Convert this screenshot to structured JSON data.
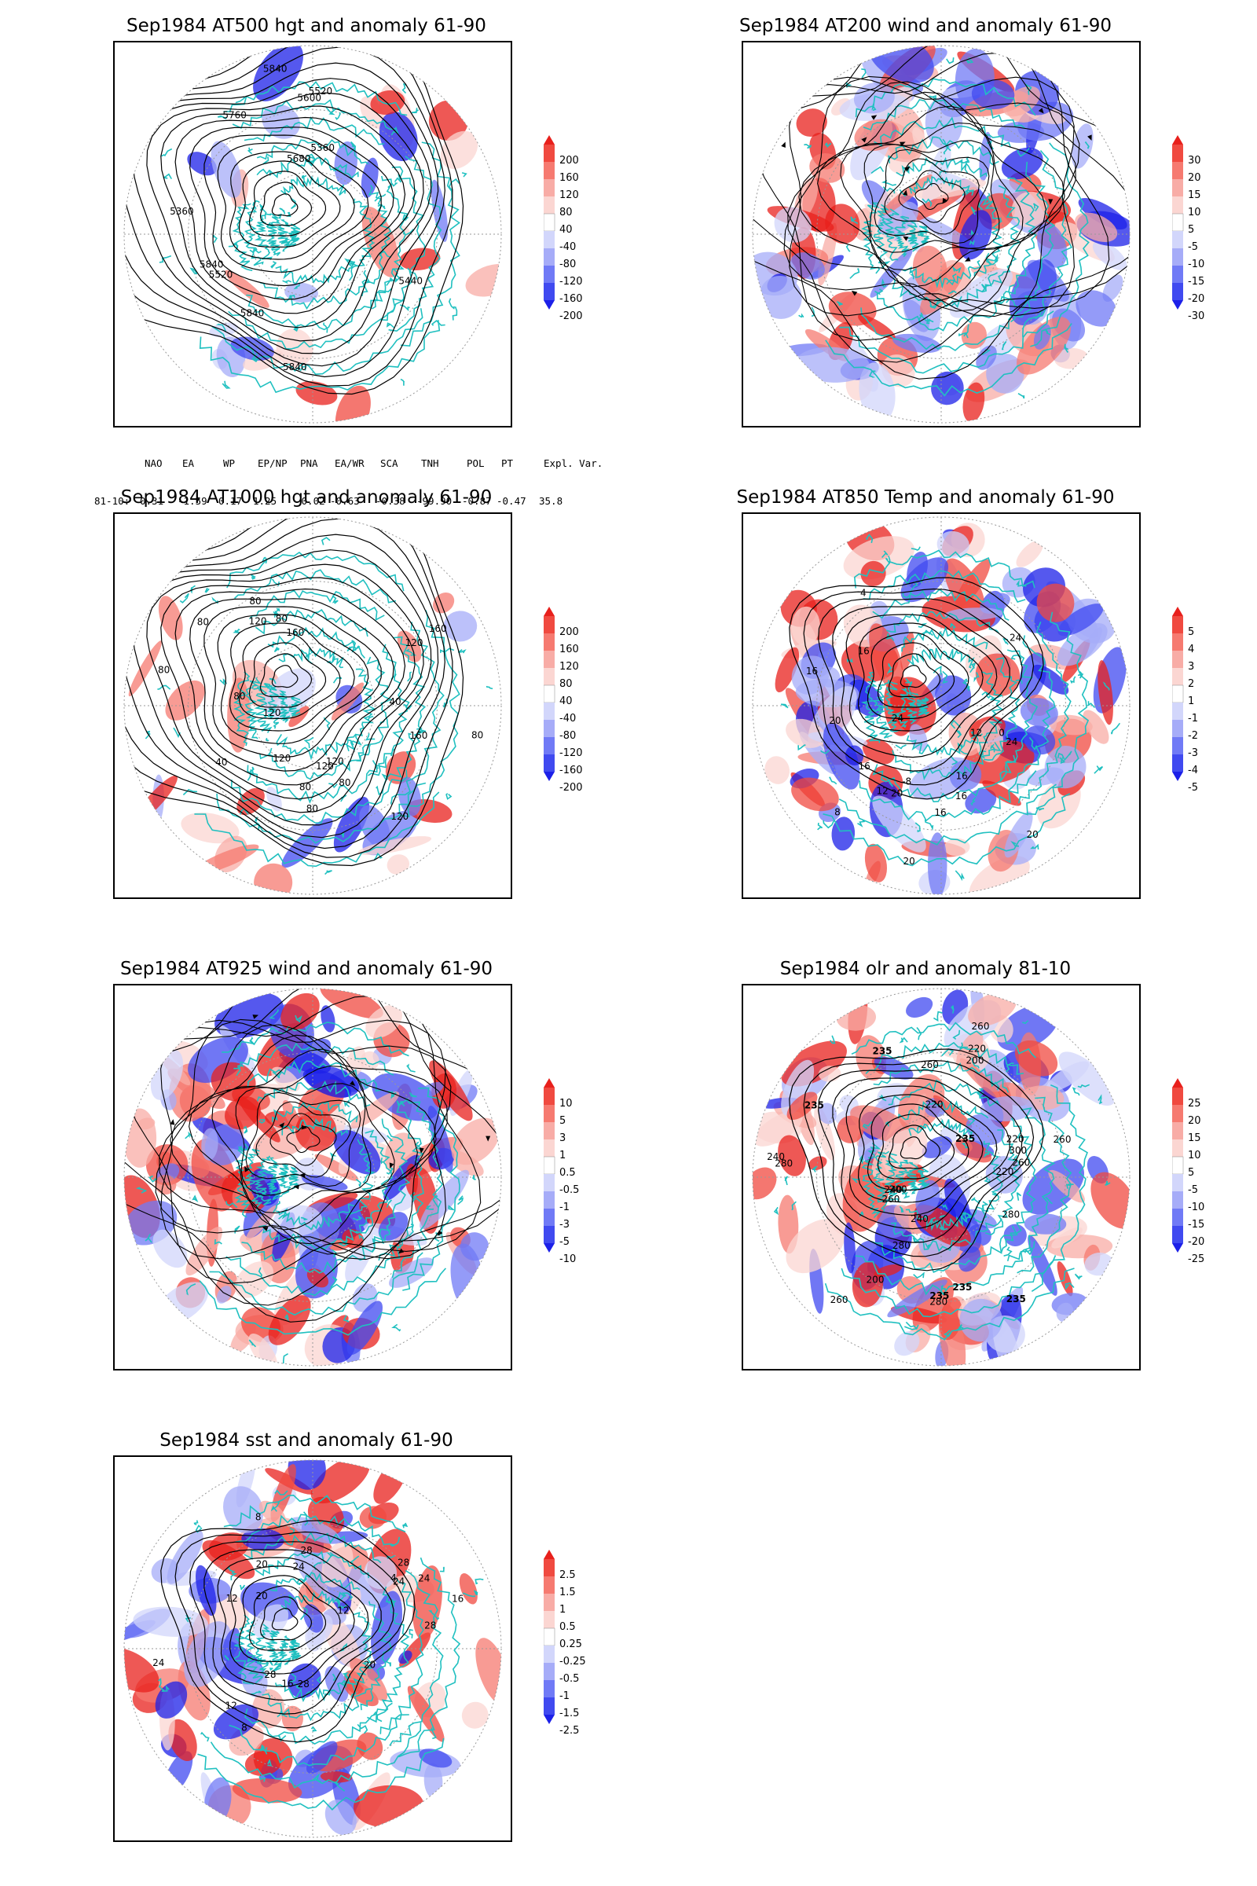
{
  "panels": [
    {
      "id": "at500",
      "title": "Sep1984 AT500 hgt and anomaly 61-90",
      "kind": "height",
      "contour_labels": [
        "5840",
        "5840",
        "5520",
        "5440",
        "5360",
        "5360",
        "5520",
        "5600",
        "5680",
        "5760",
        "5840",
        "5840"
      ],
      "colorbar": {
        "labels": [
          "200",
          "160",
          "120",
          "80",
          "40",
          "-40",
          "-80",
          "-120",
          "-160",
          "-200"
        ],
        "colors": [
          "#e8201c",
          "#f04a40",
          "#f67a70",
          "#f8aca6",
          "#fbd6d2",
          "#ffffff",
          "#d2d6fb",
          "#a6acf8",
          "#707af6",
          "#404af0",
          "#1c20e8"
        ]
      }
    },
    {
      "id": "at200",
      "title": "Sep1984 AT200 wind and anomaly 61-90",
      "kind": "wind",
      "contour_labels": [],
      "colorbar": {
        "labels": [
          "30",
          "20",
          "15",
          "10",
          "5",
          "-5",
          "-10",
          "-15",
          "-20",
          "-30"
        ],
        "colors": [
          "#e8201c",
          "#f04a40",
          "#f67a70",
          "#f8aca6",
          "#fbd6d2",
          "#ffffff",
          "#d2d6fb",
          "#a6acf8",
          "#707af6",
          "#404af0",
          "#1c20e8"
        ]
      }
    },
    {
      "id": "at1000",
      "title": "Sep1984 AT1000 hgt and anomaly 61-90",
      "kind": "height",
      "contour_labels": [
        "120",
        "120",
        "120",
        "160",
        "80",
        "40",
        "120",
        "80",
        "80",
        "40",
        "160",
        "80",
        "120",
        "80",
        "80",
        "120",
        "160",
        "80",
        "80",
        "80",
        "120"
      ],
      "colorbar": {
        "labels": [
          "200",
          "160",
          "120",
          "80",
          "40",
          "-40",
          "-80",
          "-120",
          "-160",
          "-200"
        ],
        "colors": [
          "#e8201c",
          "#f04a40",
          "#f67a70",
          "#f8aca6",
          "#fbd6d2",
          "#ffffff",
          "#d2d6fb",
          "#a6acf8",
          "#707af6",
          "#404af0",
          "#1c20e8"
        ]
      }
    },
    {
      "id": "at850",
      "title": "Sep1984 AT850 Temp and anomaly 61-90",
      "kind": "temp",
      "contour_labels": [
        "12",
        "8",
        "4",
        "20",
        "16",
        "-8",
        "0",
        "20",
        "24",
        "16",
        "12",
        "20",
        "24",
        "16",
        "16",
        "24",
        "16",
        "20",
        "16"
      ],
      "colorbar": {
        "labels": [
          "5",
          "4",
          "3",
          "2",
          "1",
          "-1",
          "-2",
          "-3",
          "-4",
          "-5"
        ],
        "colors": [
          "#e8201c",
          "#f04a40",
          "#f67a70",
          "#f8aca6",
          "#fbd6d2",
          "#ffffff",
          "#d2d6fb",
          "#a6acf8",
          "#707af6",
          "#404af0",
          "#1c20e8"
        ]
      }
    },
    {
      "id": "at925",
      "title": "Sep1984 AT925 wind and anomaly 61-90",
      "kind": "wind",
      "contour_labels": [],
      "colorbar": {
        "labels": [
          "10",
          "5",
          "3",
          "1",
          "0.5",
          "-0.5",
          "-1",
          "-3",
          "-5",
          "-10"
        ],
        "colors": [
          "#e8201c",
          "#f04a40",
          "#f67a70",
          "#f8aca6",
          "#fbd6d2",
          "#ffffff",
          "#d2d6fb",
          "#a6acf8",
          "#707af6",
          "#404af0",
          "#1c20e8"
        ]
      }
    },
    {
      "id": "olr",
      "title": "Sep1984 olr and anomaly 81-10",
      "kind": "olr",
      "contour_labels": [
        "260",
        "280",
        "240",
        "235",
        "260",
        "240",
        "235",
        "220",
        "260",
        "280",
        "200",
        "235",
        "220",
        "240",
        "200",
        "220",
        "200",
        "260",
        "235",
        "280",
        "300",
        "235",
        "220",
        "260",
        "280",
        "235",
        "260"
      ],
      "colorbar": {
        "labels": [
          "25",
          "20",
          "15",
          "10",
          "5",
          "-5",
          "-10",
          "-15",
          "-20",
          "-25"
        ],
        "colors": [
          "#e8201c",
          "#f04a40",
          "#f67a70",
          "#f8aca6",
          "#fbd6d2",
          "#ffffff",
          "#d2d6fb",
          "#a6acf8",
          "#707af6",
          "#404af0",
          "#1c20e8"
        ]
      }
    },
    {
      "id": "sst",
      "title": "Sep1984 sst and anomaly 61-90",
      "kind": "sst",
      "contour_labels": [
        "28",
        "24",
        "24",
        "20",
        "16",
        "12",
        "20",
        "28",
        "12",
        "8",
        "4",
        "28",
        "28",
        "24",
        "20",
        "16",
        "12",
        "8",
        "24",
        "28"
      ],
      "colorbar": {
        "labels": [
          "2.5",
          "1.5",
          "1",
          "0.5",
          "0.25",
          "-0.25",
          "-0.5",
          "-1",
          "-1.5",
          "-2.5"
        ],
        "colors": [
          "#e8201c",
          "#f04a40",
          "#f67a70",
          "#f8aca6",
          "#fbd6d2",
          "#ffffff",
          "#d2d6fb",
          "#a6acf8",
          "#707af6",
          "#404af0",
          "#1c20e8"
        ]
      }
    }
  ],
  "teleconnections": {
    "headers": [
      "NAO",
      "EA",
      "WP",
      "EP/NP",
      "PNA",
      "EA/WR",
      "SCA",
      "TNH",
      "POL",
      "PT",
      "Expl. Var."
    ],
    "row_label": "81-10:",
    "values": [
      "0.31",
      "-1.59",
      "0.17",
      "1.25",
      "-0.02",
      "-0.63",
      "-0.38",
      "-99.90",
      "-0.87",
      "-0.47",
      "35.8"
    ]
  },
  "colors": {
    "coast": "#20c0c0",
    "contour": "#000000",
    "grid": "#999999"
  }
}
